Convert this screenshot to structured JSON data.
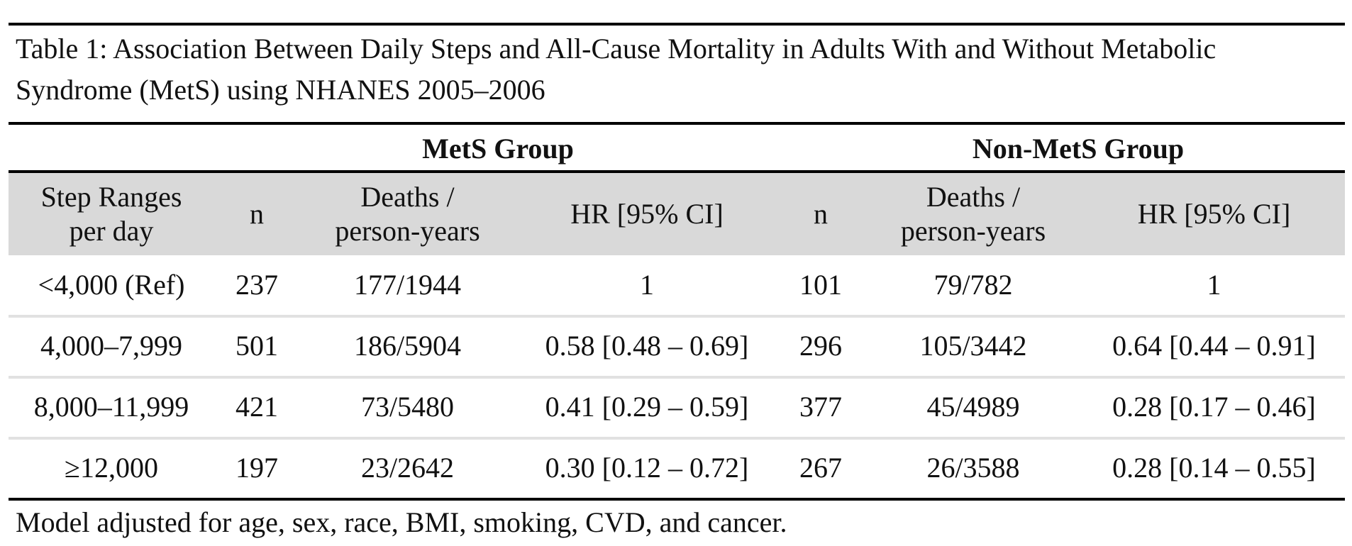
{
  "table": {
    "caption": "Table 1: Association Between Daily Steps and All-Cause Mortality in Adults With and Without Metabolic Syndrome (MetS) using NHANES 2005–2006",
    "groups": {
      "mets": "MetS Group",
      "non_mets": "Non-MetS Group"
    },
    "headers": {
      "step_ranges_line1": "Step Ranges",
      "step_ranges_line2": "per day",
      "n": "n",
      "deaths_line1": "Deaths /",
      "deaths_line2": "person-years",
      "hr": "HR [95% CI]"
    },
    "rows": [
      {
        "step_range": "<4,000 (Ref)",
        "mets_n": "237",
        "mets_deaths": "177/1944",
        "mets_hr": "1",
        "non_n": "101",
        "non_deaths": "79/782",
        "non_hr": "1"
      },
      {
        "step_range": "4,000–7,999",
        "mets_n": "501",
        "mets_deaths": "186/5904",
        "mets_hr": "0.58 [0.48 – 0.69]",
        "non_n": "296",
        "non_deaths": "105/3442",
        "non_hr": "0.64 [0.44 – 0.91]"
      },
      {
        "step_range": "8,000–11,999",
        "mets_n": "421",
        "mets_deaths": "73/5480",
        "mets_hr": "0.41 [0.29 – 0.59]",
        "non_n": "377",
        "non_deaths": "45/4989",
        "non_hr": "0.28 [0.17 – 0.46]"
      },
      {
        "step_range": "≥12,000",
        "mets_n": "197",
        "mets_deaths": "23/2642",
        "mets_hr": "0.30 [0.12 – 0.72]",
        "non_n": "267",
        "non_deaths": "26/3588",
        "non_hr": "0.28 [0.14 – 0.55]"
      }
    ],
    "footnote": "Model adjusted for age, sex, race, BMI, smoking, CVD, and cancer."
  },
  "colors": {
    "header_band": "#d9d9d9",
    "row_separator": "#e1e1e1",
    "rule": "#000000"
  }
}
